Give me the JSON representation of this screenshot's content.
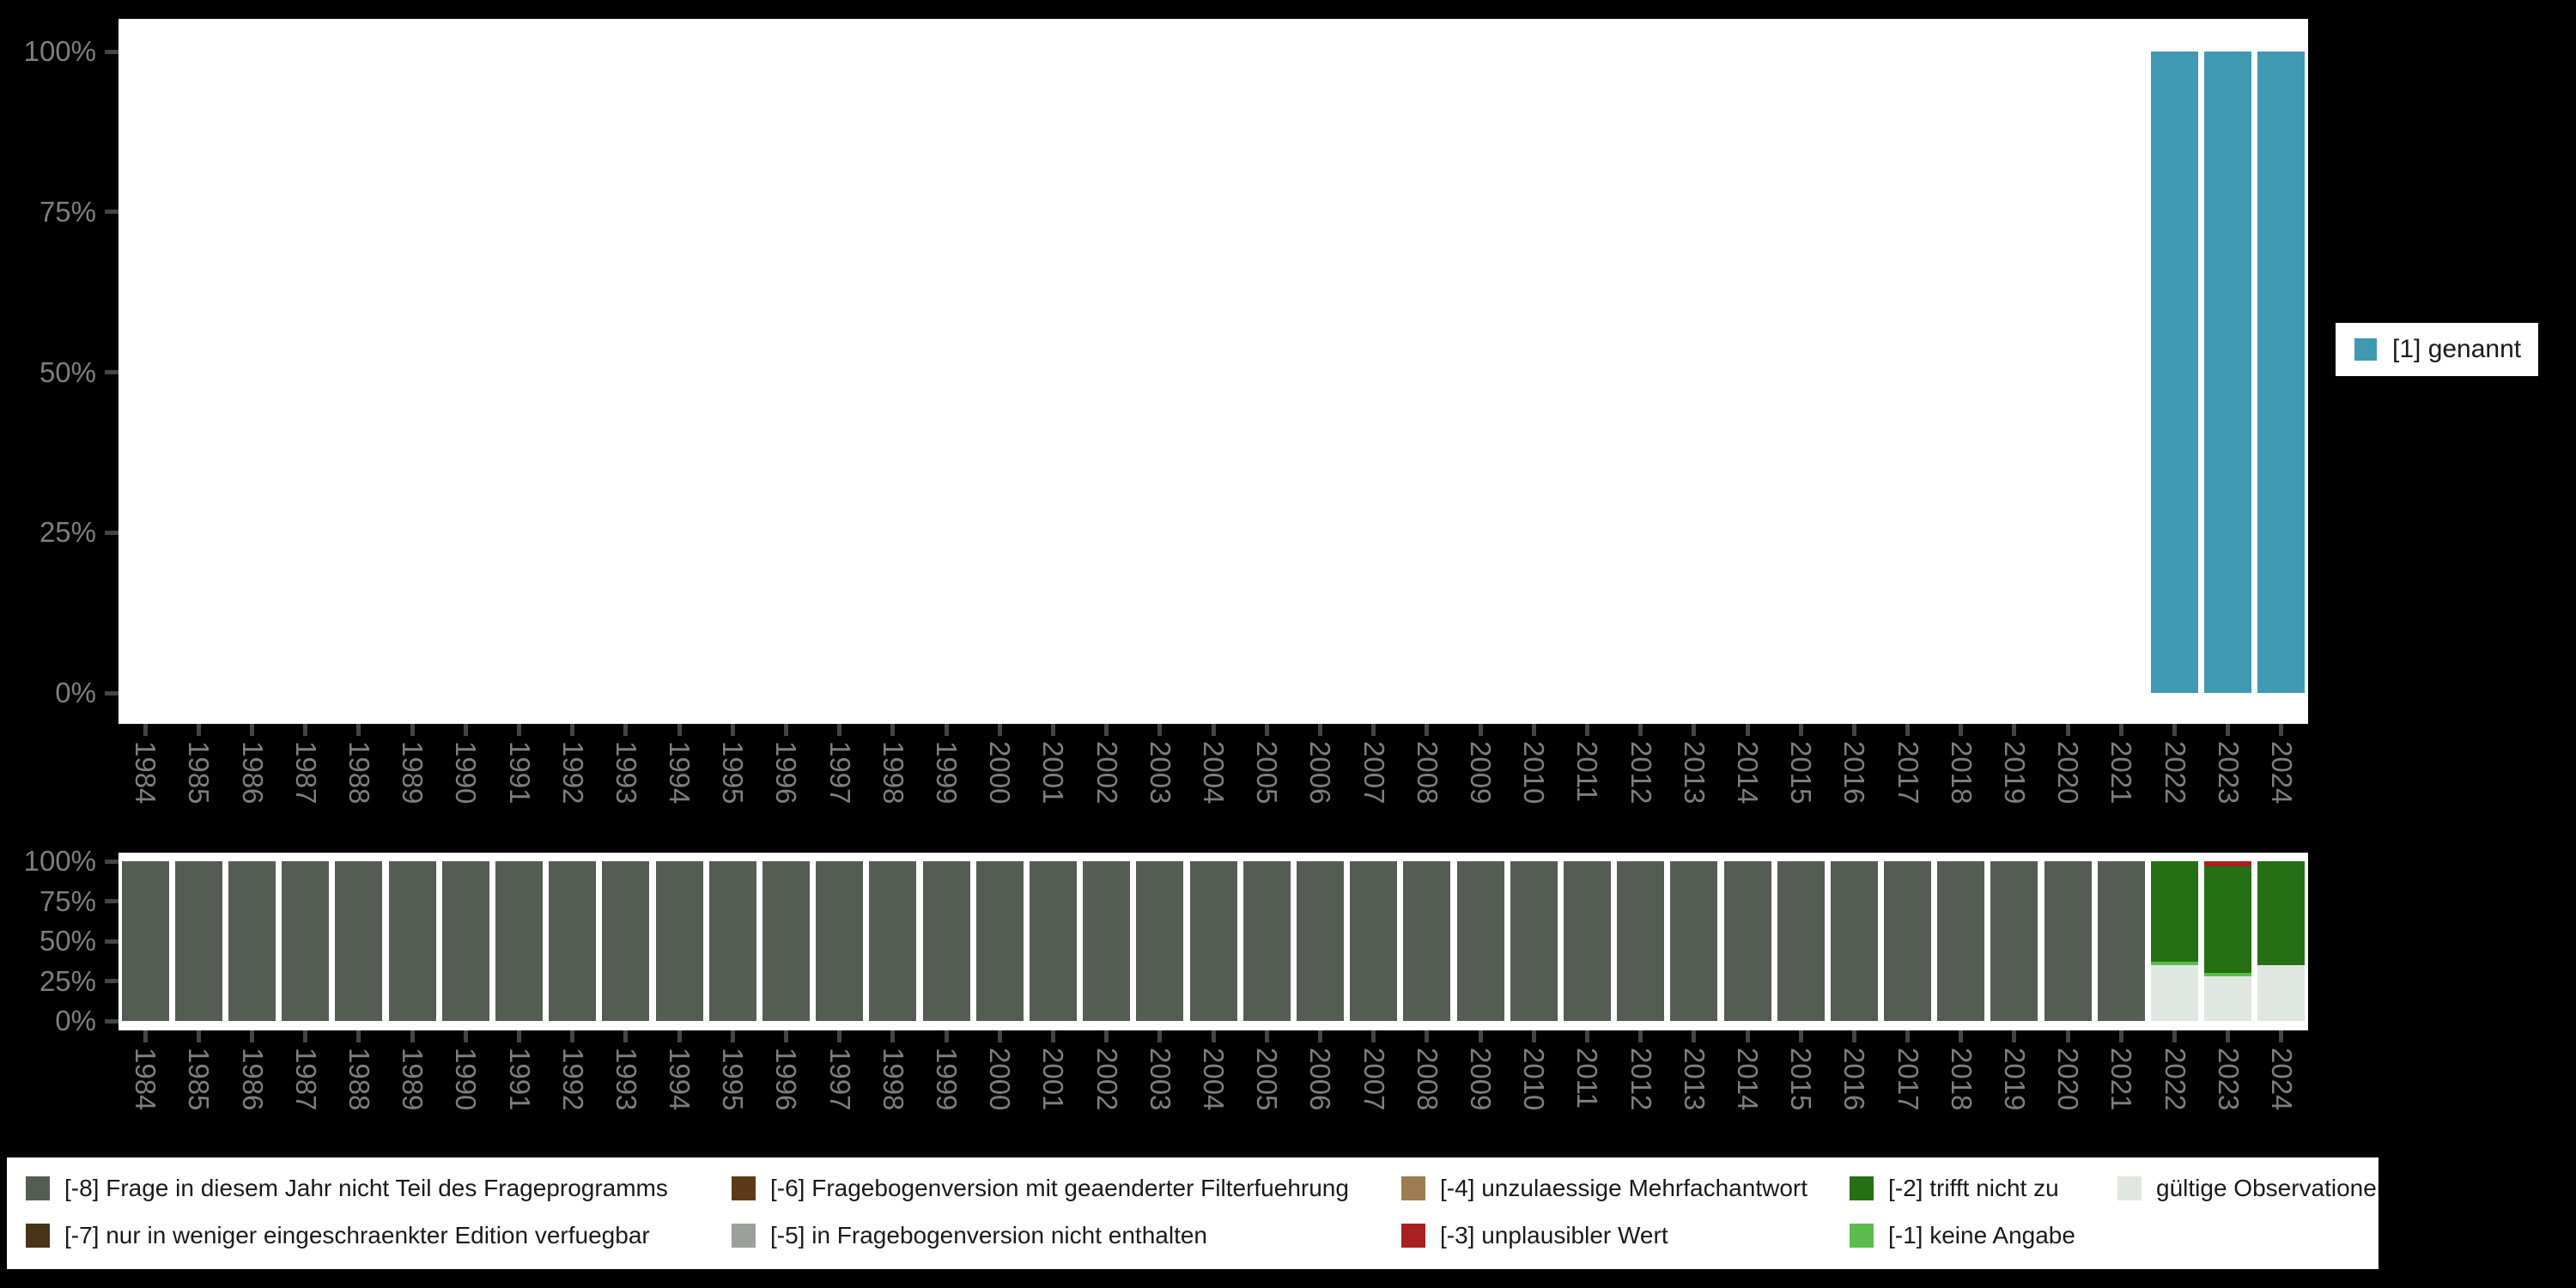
{
  "colors": {
    "background": "#000000",
    "panel": "#ffffff",
    "axis_text": "#7e7e7e",
    "tick": "#454545",
    "legend_text": "#1a1a1a",
    "legend_box": "#ffffff"
  },
  "top_legend": {
    "label": "[1] genannt",
    "color": "#3f99b3"
  },
  "chart_data": [
    {
      "type": "bar",
      "stacked": false,
      "title": "",
      "xlabel": "",
      "ylabel": "",
      "ylim": [
        0,
        100
      ],
      "unit": "percent",
      "grid": false,
      "legend_position": "right",
      "y_tick_labels": [
        "0%",
        "25%",
        "50%",
        "75%",
        "100%"
      ],
      "categories": [
        "1984",
        "1985",
        "1986",
        "1987",
        "1988",
        "1989",
        "1990",
        "1991",
        "1992",
        "1993",
        "1994",
        "1995",
        "1996",
        "1997",
        "1998",
        "1999",
        "2000",
        "2001",
        "2002",
        "2003",
        "2004",
        "2005",
        "2006",
        "2007",
        "2008",
        "2009",
        "2010",
        "2011",
        "2012",
        "2013",
        "2014",
        "2015",
        "2016",
        "2017",
        "2018",
        "2019",
        "2020",
        "2021",
        "2022",
        "2023",
        "2024"
      ],
      "series": [
        {
          "name": "[1] genannt",
          "color": "#3f99b3",
          "values": [
            0,
            0,
            0,
            0,
            0,
            0,
            0,
            0,
            0,
            0,
            0,
            0,
            0,
            0,
            0,
            0,
            0,
            0,
            0,
            0,
            0,
            0,
            0,
            0,
            0,
            0,
            0,
            0,
            0,
            0,
            0,
            0,
            0,
            0,
            0,
            0,
            0,
            0,
            100,
            100,
            100
          ]
        }
      ]
    },
    {
      "type": "bar",
      "stacked": true,
      "stack_order": "bottom-to-top",
      "title": "",
      "xlabel": "",
      "ylabel": "",
      "ylim": [
        0,
        100
      ],
      "unit": "percent",
      "grid": false,
      "legend_position": "bottom",
      "y_tick_labels": [
        "0%",
        "25%",
        "50%",
        "75%",
        "100%"
      ],
      "categories": [
        "1984",
        "1985",
        "1986",
        "1987",
        "1988",
        "1989",
        "1990",
        "1991",
        "1992",
        "1993",
        "1994",
        "1995",
        "1996",
        "1997",
        "1998",
        "1999",
        "2000",
        "2001",
        "2002",
        "2003",
        "2004",
        "2005",
        "2006",
        "2007",
        "2008",
        "2009",
        "2010",
        "2011",
        "2012",
        "2013",
        "2014",
        "2015",
        "2016",
        "2017",
        "2018",
        "2019",
        "2020",
        "2021",
        "2022",
        "2023",
        "2024"
      ],
      "series": [
        {
          "name": "gültige Observationen",
          "color": "#e0e6e0",
          "values": [
            0,
            0,
            0,
            0,
            0,
            0,
            0,
            0,
            0,
            0,
            0,
            0,
            0,
            0,
            0,
            0,
            0,
            0,
            0,
            0,
            0,
            0,
            0,
            0,
            0,
            0,
            0,
            0,
            0,
            0,
            0,
            0,
            0,
            0,
            0,
            0,
            0,
            0,
            35,
            28,
            35
          ]
        },
        {
          "name": "[-1] keine Angabe",
          "color": "#5cbb4d",
          "values": [
            0,
            0,
            0,
            0,
            0,
            0,
            0,
            0,
            0,
            0,
            0,
            0,
            0,
            0,
            0,
            0,
            0,
            0,
            0,
            0,
            0,
            0,
            0,
            0,
            0,
            0,
            0,
            0,
            0,
            0,
            0,
            0,
            0,
            0,
            0,
            0,
            0,
            0,
            2,
            2,
            0
          ]
        },
        {
          "name": "[-2] trifft nicht zu",
          "color": "#256f14",
          "values": [
            0,
            0,
            0,
            0,
            0,
            0,
            0,
            0,
            0,
            0,
            0,
            0,
            0,
            0,
            0,
            0,
            0,
            0,
            0,
            0,
            0,
            0,
            0,
            0,
            0,
            0,
            0,
            0,
            0,
            0,
            0,
            0,
            0,
            0,
            0,
            0,
            0,
            0,
            63,
            67,
            65
          ]
        },
        {
          "name": "[-3] unplausibler Wert",
          "color": "#aa1f1f",
          "values": [
            0,
            0,
            0,
            0,
            0,
            0,
            0,
            0,
            0,
            0,
            0,
            0,
            0,
            0,
            0,
            0,
            0,
            0,
            0,
            0,
            0,
            0,
            0,
            0,
            0,
            0,
            0,
            0,
            0,
            0,
            0,
            0,
            0,
            0,
            0,
            0,
            0,
            0,
            0,
            3,
            0
          ]
        },
        {
          "name": "[-4] unzulaessige Mehrfachantwort",
          "color": "#9c7c50",
          "values": [
            0,
            0,
            0,
            0,
            0,
            0,
            0,
            0,
            0,
            0,
            0,
            0,
            0,
            0,
            0,
            0,
            0,
            0,
            0,
            0,
            0,
            0,
            0,
            0,
            0,
            0,
            0,
            0,
            0,
            0,
            0,
            0,
            0,
            0,
            0,
            0,
            0,
            0,
            0,
            0,
            0
          ]
        },
        {
          "name": "[-5] in Fragebogenversion nicht enthalten",
          "color": "#9ba19a",
          "values": [
            0,
            0,
            0,
            0,
            0,
            0,
            0,
            0,
            0,
            0,
            0,
            0,
            0,
            0,
            0,
            0,
            0,
            0,
            0,
            0,
            0,
            0,
            0,
            0,
            0,
            0,
            0,
            0,
            0,
            0,
            0,
            0,
            0,
            0,
            0,
            0,
            0,
            0,
            0,
            0,
            0
          ]
        },
        {
          "name": "[-6] Fragebogenversion mit geaenderter Filterfuehrung",
          "color": "#5d3a17",
          "values": [
            0,
            0,
            0,
            0,
            0,
            0,
            0,
            0,
            0,
            0,
            0,
            0,
            0,
            0,
            0,
            0,
            0,
            0,
            0,
            0,
            0,
            0,
            0,
            0,
            0,
            0,
            0,
            0,
            0,
            0,
            0,
            0,
            0,
            0,
            0,
            0,
            0,
            0,
            0,
            0,
            0
          ]
        },
        {
          "name": "[-7] nur in weniger eingeschraenkter Edition verfuegbar",
          "color": "#4a3318",
          "values": [
            0,
            0,
            0,
            0,
            0,
            0,
            0,
            0,
            0,
            0,
            0,
            0,
            0,
            0,
            0,
            0,
            0,
            0,
            0,
            0,
            0,
            0,
            0,
            0,
            0,
            0,
            0,
            0,
            0,
            0,
            0,
            0,
            0,
            0,
            0,
            0,
            0,
            0,
            0,
            0,
            0
          ]
        },
        {
          "name": "[-8] Frage in diesem Jahr nicht Teil des Frageprogramms",
          "color": "#555c54",
          "values": [
            100,
            100,
            100,
            100,
            100,
            100,
            100,
            100,
            100,
            100,
            100,
            100,
            100,
            100,
            100,
            100,
            100,
            100,
            100,
            100,
            100,
            100,
            100,
            100,
            100,
            100,
            100,
            100,
            100,
            100,
            100,
            100,
            100,
            100,
            100,
            100,
            100,
            100,
            0,
            0,
            0
          ]
        }
      ]
    }
  ],
  "missing_value_legend": {
    "items": [
      {
        "label": "[-8] Frage in diesem Jahr nicht Teil des Frageprogramms",
        "color": "#555c54",
        "col": 0,
        "row": 0
      },
      {
        "label": "[-7] nur in weniger eingeschraenkter Edition verfuegbar",
        "color": "#4a3318",
        "col": 0,
        "row": 1
      },
      {
        "label": "[-6] Fragebogenversion mit geaenderter Filterfuehrung",
        "color": "#5d3a17",
        "col": 1,
        "row": 0
      },
      {
        "label": "[-5] in Fragebogenversion nicht enthalten",
        "color": "#9ba19a",
        "col": 1,
        "row": 1
      },
      {
        "label": "[-4] unzulaessige Mehrfachantwort",
        "color": "#9c7c50",
        "col": 2,
        "row": 0
      },
      {
        "label": "[-3] unplausibler Wert",
        "color": "#aa1f1f",
        "col": 2,
        "row": 1
      },
      {
        "label": "[-2] trifft nicht zu",
        "color": "#256f14",
        "col": 3,
        "row": 0
      },
      {
        "label": "[-1] keine Angabe",
        "color": "#5cbb4d",
        "col": 3,
        "row": 1
      },
      {
        "label": "gültige Observationen",
        "color": "#e0e6e0",
        "col": 4,
        "row": 0
      }
    ]
  }
}
